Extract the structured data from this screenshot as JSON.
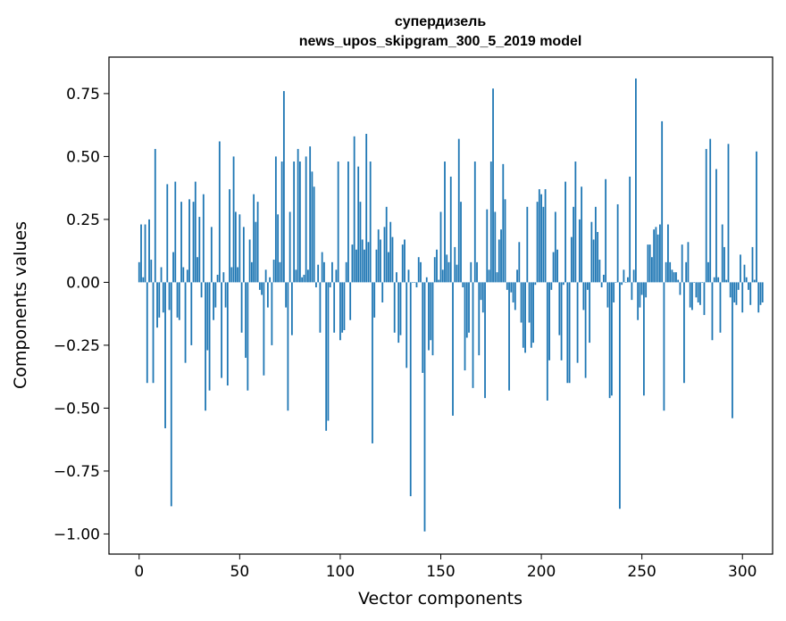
{
  "chart_data": {
    "type": "bar",
    "title": "супердизель",
    "subtitle": "news_upos_skipgram_300_5_2019 model",
    "xlabel": "Vector components",
    "ylabel": "Components values",
    "xlim": [
      -15,
      315
    ],
    "ylim": [
      -1.08,
      0.895
    ],
    "xticks": [
      0,
      50,
      100,
      150,
      200,
      250,
      300
    ],
    "xtick_labels": [
      "0",
      "50",
      "100",
      "150",
      "200",
      "250",
      "300"
    ],
    "yticks": [
      -1.0,
      -0.75,
      -0.5,
      -0.25,
      0.0,
      0.25,
      0.5,
      0.75
    ],
    "ytick_labels": [
      "−1.00",
      "−0.75",
      "−0.50",
      "−0.25",
      "0.00",
      "0.25",
      "0.50",
      "0.75"
    ],
    "bar_color": "#1f77b4",
    "grid": false,
    "values": [
      0.08,
      0.23,
      0.02,
      0.23,
      -0.4,
      0.25,
      0.09,
      -0.4,
      0.53,
      -0.18,
      -0.14,
      0.06,
      -0.12,
      -0.58,
      0.39,
      -0.11,
      -0.89,
      0.12,
      0.4,
      -0.14,
      -0.15,
      0.32,
      0.06,
      -0.32,
      0.05,
      0.33,
      -0.25,
      0.32,
      0.4,
      0.1,
      0.26,
      -0.06,
      0.35,
      -0.51,
      -0.27,
      -0.43,
      0.22,
      -0.15,
      -0.1,
      0.03,
      0.56,
      -0.38,
      0.04,
      -0.1,
      -0.41,
      0.37,
      0.06,
      0.5,
      0.28,
      0.06,
      0.27,
      -0.2,
      0.22,
      -0.3,
      -0.43,
      0.17,
      0.08,
      0.35,
      0.24,
      0.32,
      -0.03,
      -0.05,
      -0.37,
      0.05,
      -0.1,
      0.02,
      -0.25,
      0.09,
      0.5,
      0.27,
      0.08,
      0.48,
      0.76,
      -0.1,
      -0.51,
      0.28,
      -0.21,
      0.48,
      0.05,
      0.53,
      0.48,
      0.02,
      0.03,
      0.5,
      0.05,
      0.54,
      0.44,
      0.38,
      -0.02,
      0.07,
      -0.2,
      0.12,
      0.08,
      -0.59,
      -0.55,
      -0.02,
      0.08,
      -0.2,
      0.05,
      0.48,
      -0.23,
      -0.2,
      -0.19,
      0.08,
      0.48,
      -0.15,
      0.15,
      0.58,
      0.13,
      0.46,
      0.32,
      0.17,
      0.13,
      0.59,
      0.16,
      0.48,
      -0.64,
      -0.14,
      0.13,
      0.21,
      0.17,
      -0.08,
      0.22,
      0.3,
      0.12,
      0.24,
      0.18,
      -0.2,
      0.04,
      -0.24,
      -0.21,
      0.15,
      0.17,
      -0.34,
      0.05,
      -0.85,
      0.0,
      0.0,
      -0.02,
      0.1,
      0.08,
      -0.36,
      -0.99,
      0.02,
      -0.27,
      -0.23,
      -0.29,
      0.1,
      0.13,
      0.01,
      0.28,
      0.05,
      0.48,
      0.11,
      0.08,
      0.42,
      -0.53,
      0.14,
      0.07,
      0.57,
      0.32,
      -0.02,
      -0.35,
      -0.22,
      -0.2,
      0.08,
      -0.42,
      0.48,
      0.08,
      -0.29,
      -0.07,
      -0.12,
      -0.46,
      0.29,
      0.05,
      0.48,
      0.77,
      0.28,
      0.04,
      0.17,
      0.21,
      0.47,
      0.33,
      -0.03,
      -0.43,
      -0.04,
      -0.08,
      -0.11,
      0.05,
      0.16,
      -0.16,
      -0.26,
      -0.28,
      0.3,
      -0.16,
      -0.26,
      -0.24,
      -0.01,
      0.32,
      0.37,
      0.35,
      0.3,
      0.37,
      -0.47,
      -0.31,
      -0.03,
      0.12,
      0.28,
      0.13,
      -0.21,
      -0.31,
      -0.01,
      0.4,
      -0.4,
      -0.4,
      0.18,
      0.3,
      0.48,
      -0.32,
      0.25,
      0.38,
      -0.11,
      -0.38,
      -0.03,
      -0.24,
      0.24,
      0.17,
      0.3,
      0.2,
      0.09,
      -0.02,
      0.03,
      0.41,
      -0.1,
      -0.46,
      -0.45,
      -0.08,
      0.0,
      0.31,
      -0.9,
      -0.01,
      0.05,
      0.0,
      0.02,
      0.42,
      -0.07,
      0.05,
      0.81,
      -0.15,
      -0.1,
      -0.05,
      -0.45,
      -0.06,
      0.15,
      0.15,
      0.1,
      0.21,
      0.22,
      0.19,
      0.23,
      0.64,
      -0.51,
      0.08,
      0.23,
      0.08,
      0.05,
      0.04,
      0.04,
      0.01,
      -0.05,
      0.15,
      -0.4,
      0.08,
      0.16,
      -0.1,
      -0.11,
      0.0,
      -0.06,
      -0.08,
      -0.09,
      0.0,
      -0.13,
      0.53,
      0.08,
      0.57,
      -0.23,
      0.02,
      0.45,
      0.02,
      -0.2,
      0.23,
      0.14,
      0.01,
      0.55,
      -0.06,
      -0.54,
      -0.08,
      -0.09,
      -0.03,
      0.11,
      -0.12,
      0.07,
      0.02,
      -0.03,
      -0.09,
      0.14,
      0.01,
      0.52,
      -0.12,
      -0.09,
      -0.08
    ]
  }
}
